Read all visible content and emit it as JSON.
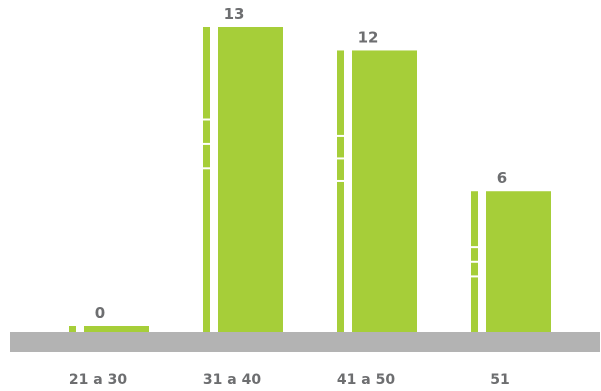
{
  "chart_data": {
    "type": "bar",
    "categories": [
      "21 a 30",
      "31 a 40",
      "41 a 50",
      "51"
    ],
    "values": [
      0,
      13,
      12,
      6
    ],
    "data_labels": [
      "0",
      "13",
      "12",
      "6"
    ],
    "title": "",
    "xlabel": "",
    "ylabel": "",
    "ylim": [
      0,
      13.5
    ],
    "grid": false,
    "legend": "none",
    "colors": {
      "bar": "#a6ce39",
      "baseline": "#b3b3b3",
      "text": "#6d6e70"
    }
  }
}
